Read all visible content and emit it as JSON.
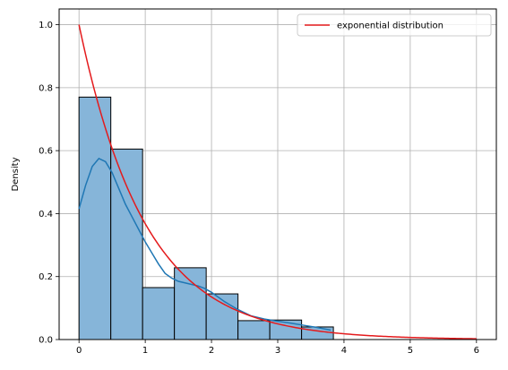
{
  "chart_data": {
    "type": "bar",
    "xlabel": "",
    "ylabel": "Density",
    "xlim": [
      -0.3,
      6.3
    ],
    "ylim": [
      0,
      1.05
    ],
    "xticks": [
      0,
      1,
      2,
      3,
      4,
      5,
      6
    ],
    "yticks": [
      0.0,
      0.2,
      0.4,
      0.6,
      0.8,
      1.0
    ],
    "xtick_labels": [
      "0",
      "1",
      "2",
      "3",
      "4",
      "5",
      "6"
    ],
    "ytick_labels": [
      "0.0",
      "0.2",
      "0.4",
      "0.6",
      "0.8",
      "1.0"
    ],
    "grid": true,
    "legend_position": "top-right",
    "histogram": {
      "bin_edges": [
        0.0,
        0.48,
        0.96,
        1.44,
        1.92,
        2.4,
        2.88,
        3.36,
        3.84
      ],
      "density": [
        0.77,
        0.605,
        0.165,
        0.228,
        0.145,
        0.06,
        0.062,
        0.04
      ],
      "fill_color": "#86b5d9",
      "edge_color": "#000000"
    },
    "kde": {
      "color": "#1f77b4",
      "x": [
        0.0,
        0.1,
        0.2,
        0.3,
        0.4,
        0.5,
        0.6,
        0.7,
        0.8,
        0.9,
        1.0,
        1.1,
        1.2,
        1.3,
        1.4,
        1.5,
        1.6,
        1.7,
        1.8,
        1.9,
        2.0,
        2.2,
        2.4,
        2.6,
        2.8,
        3.0,
        3.2,
        3.4,
        3.6,
        3.8
      ],
      "y": [
        0.415,
        0.49,
        0.55,
        0.575,
        0.565,
        0.53,
        0.48,
        0.43,
        0.39,
        0.35,
        0.31,
        0.275,
        0.24,
        0.21,
        0.195,
        0.185,
        0.18,
        0.175,
        0.17,
        0.162,
        0.15,
        0.12,
        0.095,
        0.075,
        0.065,
        0.058,
        0.052,
        0.045,
        0.038,
        0.03
      ]
    },
    "series": [
      {
        "name": "exponential distribution",
        "color": "#e41a1c",
        "function": "exp(-x)",
        "x_range": [
          0,
          6
        ]
      }
    ]
  }
}
